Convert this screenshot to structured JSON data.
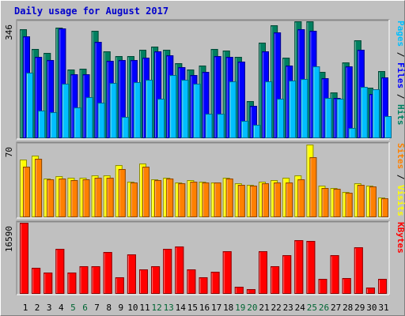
{
  "chart_data": [
    {
      "type": "bar",
      "title": "Daily usage for August 2017",
      "categories": [
        "1",
        "2",
        "3",
        "4",
        "5",
        "6",
        "7",
        "8",
        "9",
        "10",
        "11",
        "12",
        "13",
        "14",
        "15",
        "16",
        "17",
        "18",
        "19",
        "20",
        "21",
        "22",
        "23",
        "24",
        "25",
        "26",
        "27",
        "28",
        "29",
        "30",
        "31"
      ],
      "category_colors": [
        "#000000",
        "#000000",
        "#000000",
        "#000000",
        "#006633",
        "#006633",
        "#000000",
        "#000000",
        "#000000",
        "#000000",
        "#000000",
        "#006633",
        "#006633",
        "#000000",
        "#000000",
        "#000000",
        "#000000",
        "#000000",
        "#006633",
        "#006633",
        "#000000",
        "#000000",
        "#000000",
        "#000000",
        "#006633",
        "#006633",
        "#000000",
        "#000000",
        "#000000",
        "#000000",
        "#000000"
      ],
      "ylim": [
        0,
        346
      ],
      "ytick_label": "346",
      "series": [
        {
          "name": "Hits",
          "color": "#008060",
          "values": [
            323,
            264,
            252,
            327,
            203,
            206,
            318,
            257,
            243,
            242,
            262,
            272,
            261,
            223,
            203,
            214,
            264,
            260,
            241,
            110,
            282,
            335,
            238,
            346,
            346,
            197,
            135,
            225,
            290,
            149,
            198
          ]
        },
        {
          "name": "Files",
          "color": "#0000ff",
          "values": [
            301,
            241,
            231,
            326,
            189,
            190,
            286,
            230,
            231,
            232,
            239,
            257,
            246,
            210,
            187,
            196,
            243,
            241,
            226,
            95,
            258,
            314,
            216,
            322,
            319,
            177,
            120,
            213,
            262,
            131,
            179
          ]
        },
        {
          "name": "Pages",
          "color": "#00bfff",
          "values": [
            195,
            82,
            78,
            161,
            91,
            121,
            105,
            164,
            64,
            166,
            174,
            117,
            186,
            174,
            162,
            72,
            72,
            169,
            52,
            40,
            168,
            118,
            171,
            175,
            213,
            120,
            118,
            30,
            151,
            145,
            66
          ]
        }
      ]
    },
    {
      "type": "bar",
      "ylim": [
        0,
        70
      ],
      "ytick_label": "70",
      "series": [
        {
          "name": "Visits",
          "color": "#ffff00",
          "values": [
            55,
            59,
            37,
            39,
            38,
            38,
            40,
            40,
            50,
            34,
            51,
            36,
            38,
            33,
            35,
            34,
            33,
            38,
            32,
            31,
            34,
            35,
            38,
            40,
            69,
            30,
            28,
            24,
            32,
            30,
            19
          ]
        },
        {
          "name": "Sites",
          "color": "#ff8000",
          "values": [
            48,
            56,
            36,
            37,
            35,
            36,
            38,
            38,
            46,
            33,
            48,
            35,
            37,
            32,
            34,
            33,
            33,
            37,
            31,
            30,
            32,
            33,
            33,
            36,
            57,
            28,
            27,
            23,
            31,
            29,
            18
          ]
        }
      ]
    },
    {
      "type": "bar",
      "ylim": [
        0,
        16590
      ],
      "ytick_label": "16590",
      "series": [
        {
          "name": "KBytes",
          "color": "#ff0000",
          "values": [
            16590,
            6000,
            4960,
            10500,
            4960,
            6500,
            6500,
            9760,
            3820,
            9260,
            5800,
            6500,
            10500,
            11000,
            5800,
            3820,
            5200,
            9900,
            1700,
            1130,
            9900,
            6500,
            9000,
            12600,
            12300,
            3500,
            9000,
            3650,
            10840,
            1400,
            3500
          ]
        }
      ]
    }
  ]
}
